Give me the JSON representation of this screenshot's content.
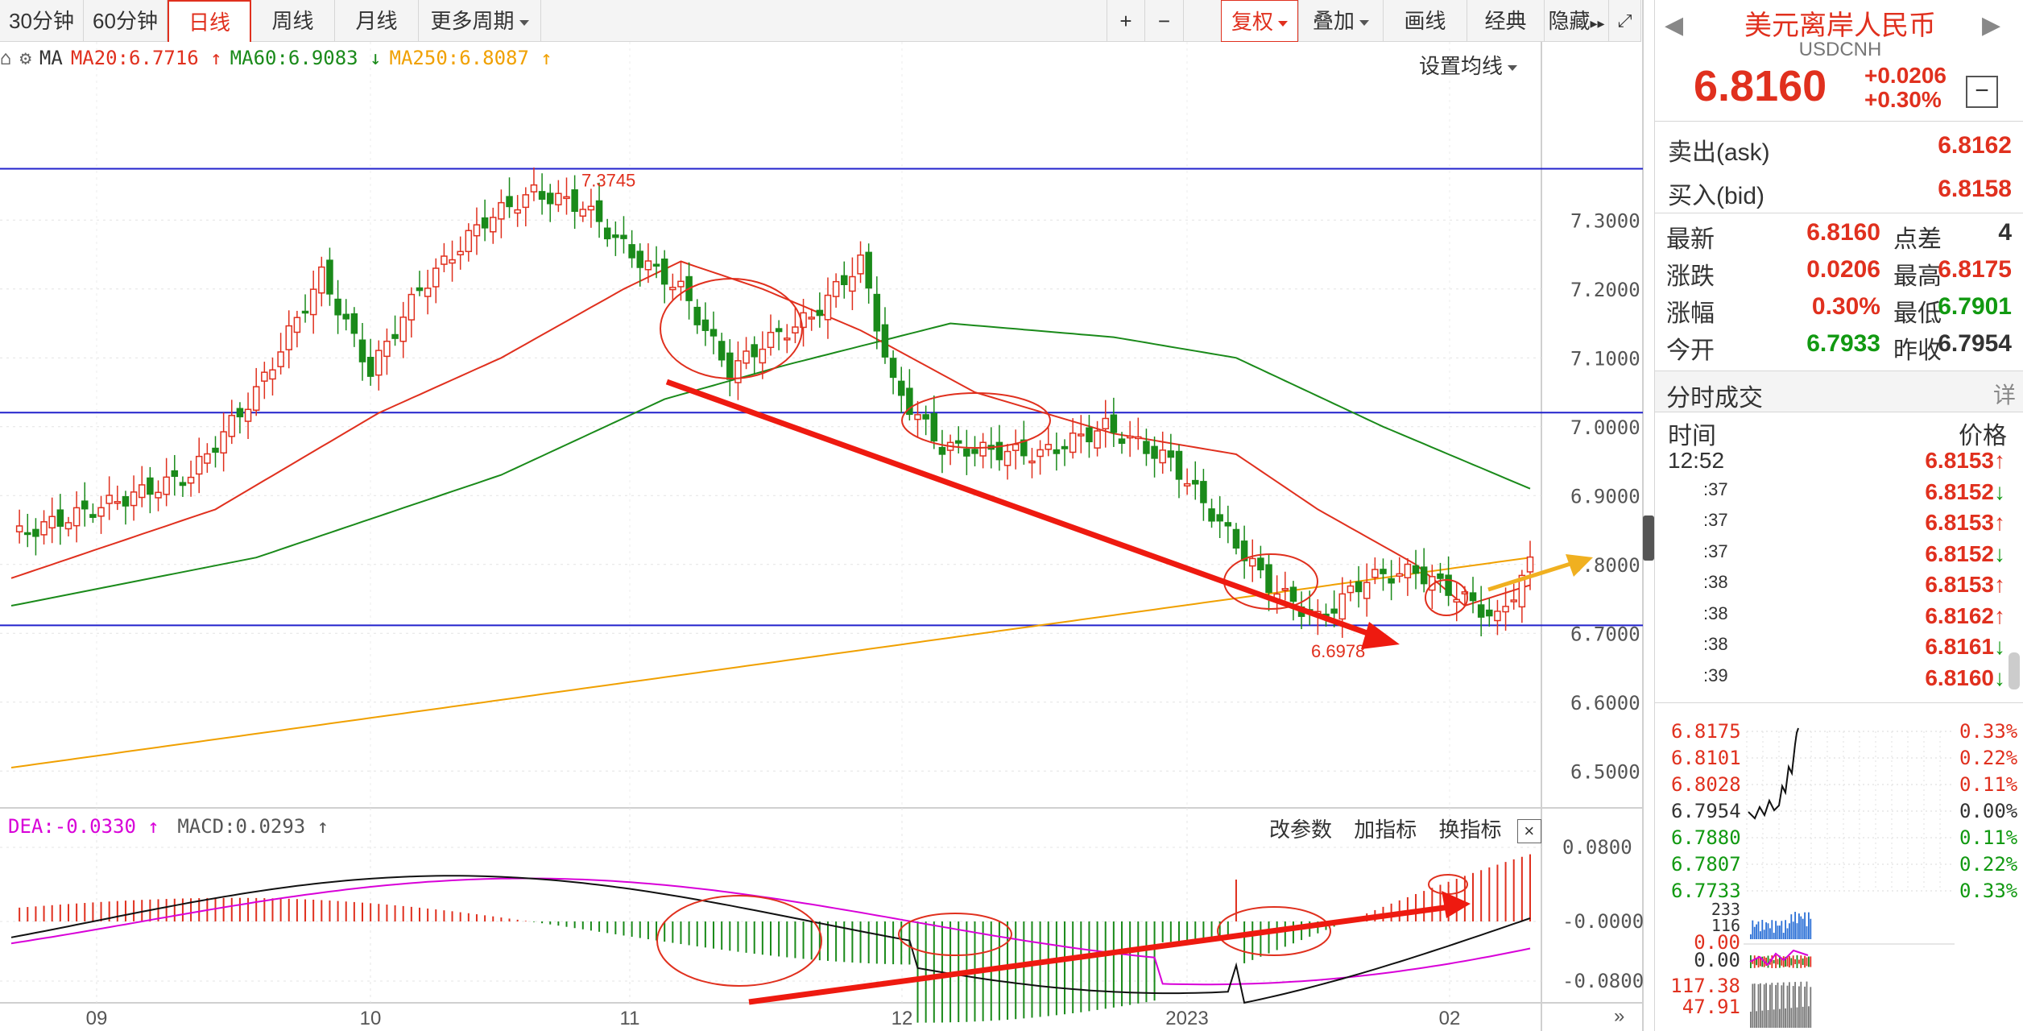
{
  "toolbar": {
    "periods": [
      "30分钟",
      "60分钟",
      "日线",
      "周线",
      "月线",
      "更多周期"
    ],
    "active_period": "日线",
    "plus": "+",
    "minus": "−",
    "fuquan": "复权",
    "overlay": "叠加",
    "draw": "画线",
    "classic": "经典",
    "hide": "隐藏"
  },
  "ma_row": {
    "label": "MA",
    "ma20": "MA20:6.7716",
    "ma60": "MA60:6.9083",
    "ma250": "MA250:6.8087",
    "settings": "设置均线"
  },
  "chart_data": {
    "type": "candlestick",
    "symbol": "USDCNH",
    "yticks": [
      "7.3000",
      "7.2000",
      "7.1000",
      "7.0000",
      "6.9000",
      "6.8000",
      "6.7000",
      "6.6000",
      "6.5000"
    ],
    "ylim": [
      6.45,
      7.45
    ],
    "xticks": [
      "09",
      "10",
      "11",
      "12",
      "2023",
      "02"
    ],
    "high_label": "7.3745",
    "low_label": "6.6978",
    "hlines": [
      7.3745,
      7.0205,
      6.7115
    ],
    "ma_colors": {
      "ma20": "#e0301e",
      "ma60": "#1a8a1a",
      "ma250": "#f0a000"
    }
  },
  "macd": {
    "dea": "DEA:-0.0330",
    "macd": "MACD:0.0293",
    "buttons": [
      "改参数",
      "加指标",
      "换指标"
    ],
    "yticks": [
      "0.0800",
      "-0.0000",
      "-0.0800"
    ]
  },
  "quote": {
    "title": "美元离岸人民币",
    "code": "USDCNH",
    "price": "6.8160",
    "change": "+0.0206",
    "change_pct": "+0.30%",
    "ask_label": "卖出(ask)",
    "ask": "6.8162",
    "bid_label": "买入(bid)",
    "bid": "6.8158",
    "stats": [
      {
        "l1": "最新",
        "v1": "6.8160",
        "c1": "red",
        "l2": "点差",
        "v2": "4",
        "c2": "dark"
      },
      {
        "l1": "涨跌",
        "v1": "0.0206",
        "c1": "red",
        "l2": "最高",
        "v2": "6.8175",
        "c2": "red"
      },
      {
        "l1": "涨幅",
        "v1": "0.30%",
        "c1": "red",
        "l2": "最低",
        "v2": "6.7901",
        "c2": "green"
      },
      {
        "l1": "今开",
        "v1": "6.7933",
        "c1": "green",
        "l2": "昨收",
        "v2": "6.7954",
        "c2": "dark"
      }
    ],
    "ticks_title": "分时成交",
    "ticks_detail": "详",
    "ticks_header_time": "时间",
    "ticks_header_price": "价格",
    "ticks": [
      {
        "time": "12:52",
        "price": "6.8153",
        "dir": "up"
      },
      {
        "time": ":37",
        "price": "6.8152",
        "dir": "down"
      },
      {
        "time": ":37",
        "price": "6.8153",
        "dir": "up"
      },
      {
        "time": ":37",
        "price": "6.8152",
        "dir": "down"
      },
      {
        "time": ":38",
        "price": "6.8153",
        "dir": "up"
      },
      {
        "time": ":38",
        "price": "6.8162",
        "dir": "up"
      },
      {
        "time": ":38",
        "price": "6.8161",
        "dir": "down"
      },
      {
        "time": ":39",
        "price": "6.8160",
        "dir": "down"
      }
    ],
    "mini_left": [
      "6.8175",
      "6.8101",
      "6.8028",
      "6.7954",
      "6.7880",
      "6.7807",
      "6.7733"
    ],
    "mini_right": [
      "0.33%",
      "0.22%",
      "0.11%",
      "0.00%",
      "0.11%",
      "0.22%",
      "0.33%"
    ],
    "mini_sub": [
      "233",
      "116",
      "0.00",
      "0.00",
      "117.38",
      "47.91"
    ]
  }
}
